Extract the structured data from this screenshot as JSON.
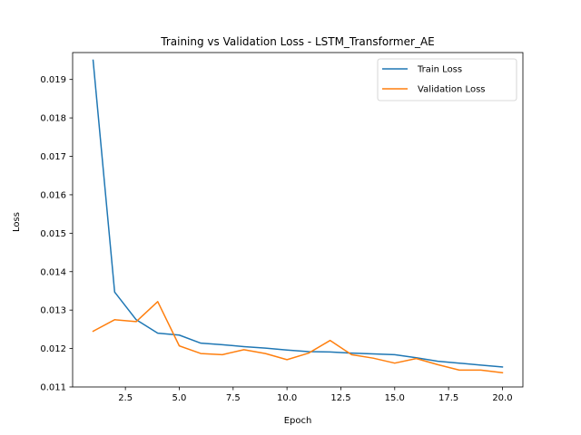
{
  "chart_data": {
    "type": "line",
    "title": "Training vs Validation Loss - LSTM_Transformer_AE",
    "xlabel": "Epoch",
    "ylabel": "Loss",
    "xlim": [
      0.05,
      20.95
    ],
    "ylim": [
      0.011,
      0.0197
    ],
    "xticks": [
      2.5,
      5.0,
      7.5,
      10.0,
      12.5,
      15.0,
      17.5,
      20.0
    ],
    "xtick_labels": [
      "2.5",
      "5.0",
      "7.5",
      "10.0",
      "12.5",
      "15.0",
      "17.5",
      "20.0"
    ],
    "yticks": [
      0.011,
      0.012,
      0.013,
      0.014,
      0.015,
      0.016,
      0.017,
      0.018,
      0.019
    ],
    "ytick_labels": [
      "0.011",
      "0.012",
      "0.013",
      "0.014",
      "0.015",
      "0.016",
      "0.017",
      "0.018",
      "0.019"
    ],
    "grid": false,
    "legend_position": "top-right",
    "x": [
      1,
      2,
      3,
      4,
      5,
      6,
      7,
      8,
      9,
      10,
      11,
      12,
      13,
      14,
      15,
      16,
      17,
      18,
      19,
      20
    ],
    "series": [
      {
        "name": "Train Loss",
        "color": "#1f77b4",
        "values": [
          0.0195,
          0.01347,
          0.01275,
          0.0124,
          0.01235,
          0.01214,
          0.0121,
          0.01205,
          0.01201,
          0.01196,
          0.01192,
          0.01191,
          0.01188,
          0.01186,
          0.01184,
          0.01176,
          0.01167,
          0.01162,
          0.01157,
          0.01152
        ]
      },
      {
        "name": "Validation Loss",
        "color": "#ff7f0e",
        "values": [
          0.01245,
          0.01275,
          0.0127,
          0.01322,
          0.01207,
          0.01187,
          0.01184,
          0.01197,
          0.01187,
          0.01171,
          0.01188,
          0.01221,
          0.01184,
          0.01175,
          0.01162,
          0.01174,
          0.01158,
          0.01144,
          0.01144,
          0.01137
        ]
      }
    ]
  }
}
